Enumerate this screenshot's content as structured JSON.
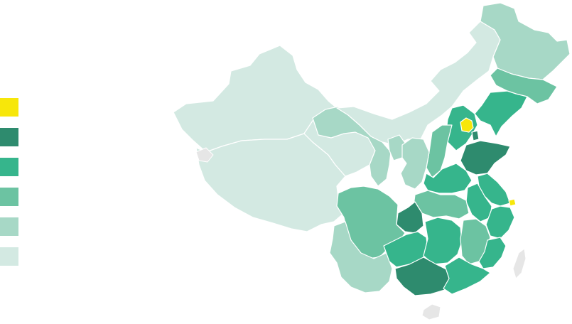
{
  "legend": {
    "items": [
      {
        "color": "#f7e70a"
      },
      {
        "color": "#2e8b6e"
      },
      {
        "color": "#36b58c"
      },
      {
        "color": "#6cc3a2"
      },
      {
        "color": "#a7d8c6"
      },
      {
        "color": "#d3e9e2"
      }
    ]
  },
  "regions": [
    {
      "name": "xinjiang",
      "tier": 5
    },
    {
      "name": "tibet",
      "tier": 5
    },
    {
      "name": "qinghai",
      "tier": 5
    },
    {
      "name": "gansu",
      "tier": 4
    },
    {
      "name": "inner-mongolia",
      "tier": 5
    },
    {
      "name": "heilongjiang",
      "tier": 4
    },
    {
      "name": "jilin",
      "tier": 3
    },
    {
      "name": "liaoning",
      "tier": 2
    },
    {
      "name": "beijing",
      "tier": 0
    },
    {
      "name": "tianjin",
      "tier": 1
    },
    {
      "name": "hebei",
      "tier": 2
    },
    {
      "name": "shanxi",
      "tier": 3
    },
    {
      "name": "shandong",
      "tier": 1
    },
    {
      "name": "ningxia",
      "tier": 4
    },
    {
      "name": "shaanxi",
      "tier": 4
    },
    {
      "name": "henan",
      "tier": 2
    },
    {
      "name": "jiangsu",
      "tier": 2
    },
    {
      "name": "anhui",
      "tier": 2
    },
    {
      "name": "shanghai",
      "tier": 0
    },
    {
      "name": "zhejiang",
      "tier": 2
    },
    {
      "name": "hubei",
      "tier": 3
    },
    {
      "name": "chongqing",
      "tier": 1
    },
    {
      "name": "sichuan",
      "tier": 3
    },
    {
      "name": "yunnan",
      "tier": 4
    },
    {
      "name": "guizhou",
      "tier": 2
    },
    {
      "name": "hunan",
      "tier": 2
    },
    {
      "name": "jiangxi",
      "tier": 3
    },
    {
      "name": "fujian",
      "tier": 2
    },
    {
      "name": "guangxi",
      "tier": 1
    },
    {
      "name": "guangdong",
      "tier": 2
    },
    {
      "name": "hainan",
      "tier": 6
    },
    {
      "name": "taiwan",
      "tier": 6
    },
    {
      "name": "aksai-chin",
      "tier": 6
    }
  ],
  "nodata_color": "#e6e6e6"
}
